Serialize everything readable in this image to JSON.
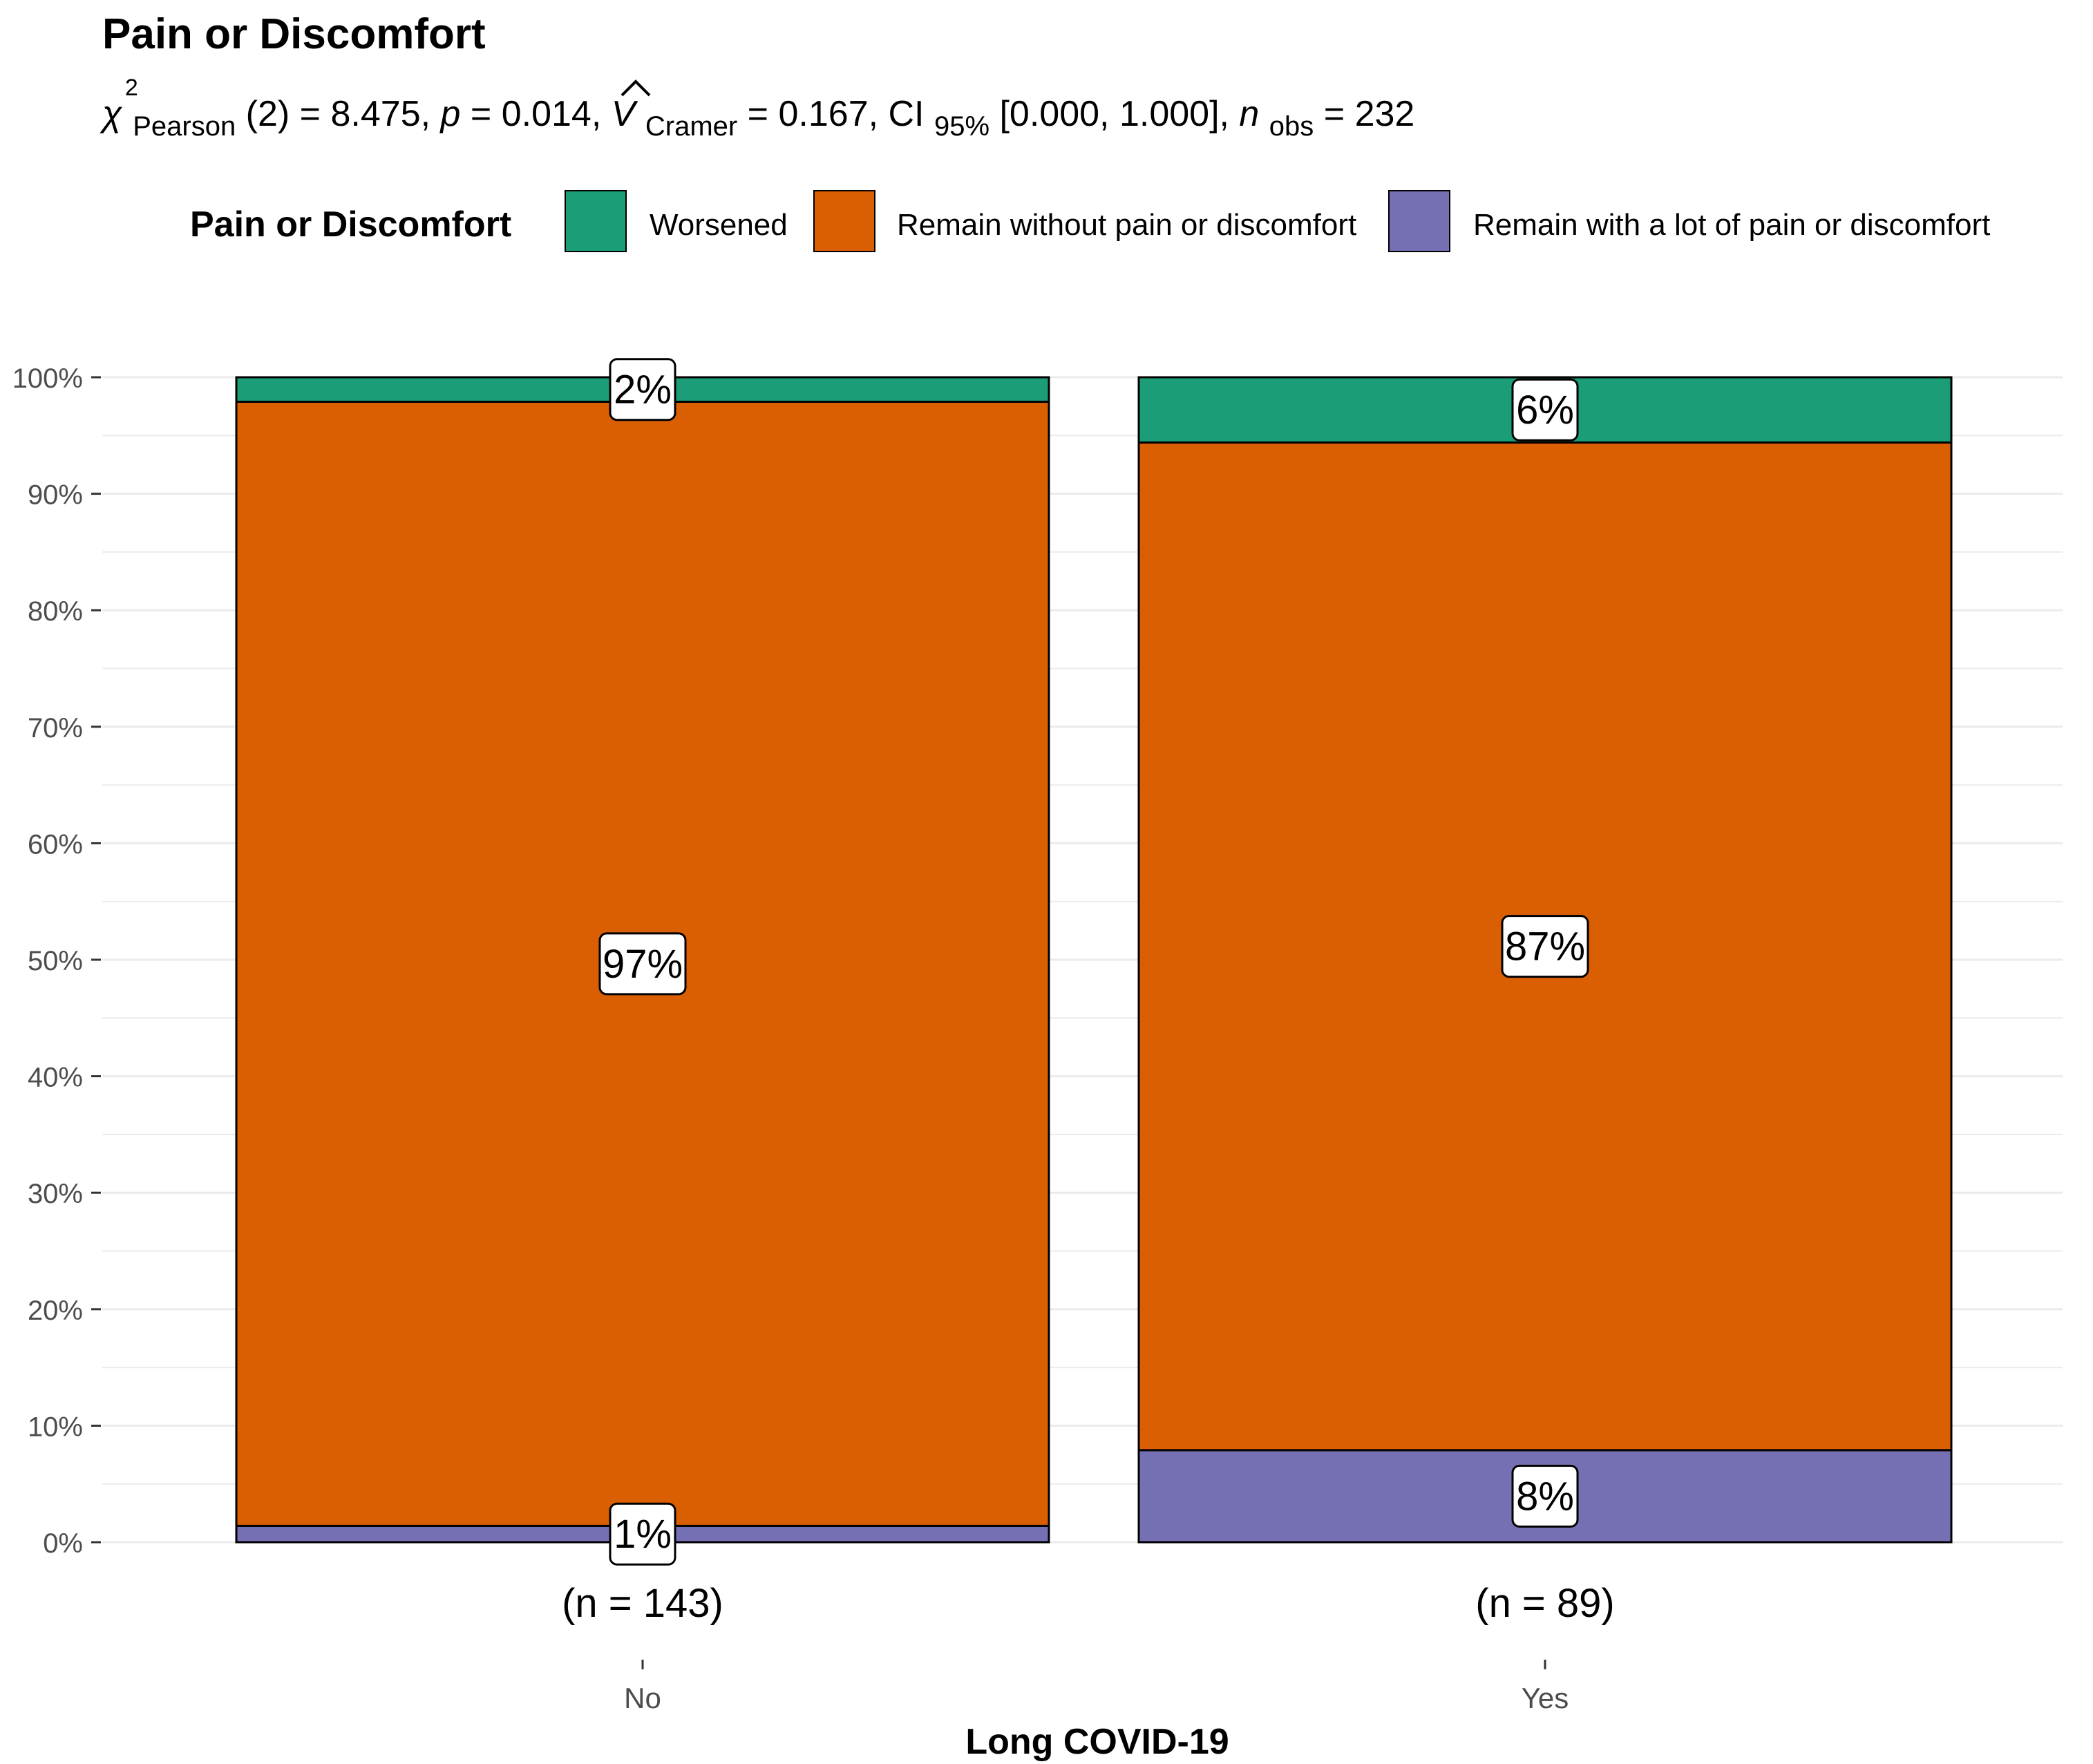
{
  "chart_data": {
    "type": "bar",
    "stacked": true,
    "title": "Pain or Discomfort",
    "subtitle": {
      "chi_symbol": "χ",
      "chi_sup": "2",
      "chi_sub": "Pearson",
      "chi_df": "(2)",
      "chi_value": " = 8.475, ",
      "p_symbol": "p",
      "p_value": " = 0.014, ",
      "v_symbol": "V",
      "v_sub": "Cramer",
      "v_value": " = 0.167, CI",
      "ci_sub": "95%",
      "ci_value": " [0.000, 1.000], ",
      "n_symbol": "n",
      "n_sub": "obs",
      "n_value": " = 232"
    },
    "legend_title": "Pain or Discomfort",
    "legend_position": "top",
    "xlabel": "Long COVID-19",
    "ylabel": "",
    "ylim": [
      0,
      100
    ],
    "yticks": [
      0,
      10,
      20,
      30,
      40,
      50,
      60,
      70,
      80,
      90,
      100
    ],
    "ytick_labels": [
      "0%",
      "10%",
      "20%",
      "30%",
      "40%",
      "50%",
      "60%",
      "70%",
      "80%",
      "90%",
      "100%"
    ],
    "grid": true,
    "categories": [
      "No",
      "Yes"
    ],
    "counts": [
      "(n = 143)",
      "(n = 89)"
    ],
    "series": [
      {
        "name": "Remain with a lot of pain or discomfort",
        "color": "#7570b3",
        "values": [
          1.4,
          7.9
        ],
        "labels": [
          "1%",
          "8%"
        ]
      },
      {
        "name": "Remain without pain or discomfort",
        "color": "#d95f02",
        "values": [
          96.5,
          86.5
        ],
        "labels": [
          "97%",
          "87%"
        ]
      },
      {
        "name": "Worsened",
        "color": "#1b9e77",
        "values": [
          2.1,
          5.6
        ],
        "labels": [
          "2%",
          "6%"
        ]
      }
    ],
    "legend_order": [
      "Worsened",
      "Remain without pain or discomfort",
      "Remain with a lot of pain or discomfort"
    ]
  }
}
